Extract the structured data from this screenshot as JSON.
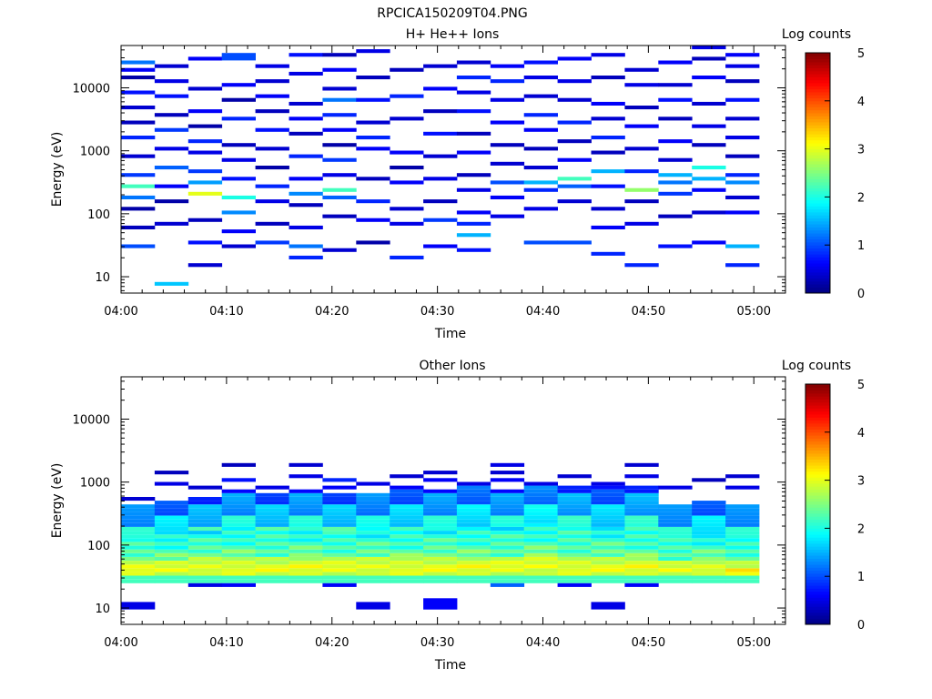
{
  "figure": {
    "title": "RPCICA150209T04.PNG"
  },
  "colorbar": {
    "label": "Log counts",
    "range": [
      0,
      5
    ],
    "ticks": [
      "0",
      "1",
      "2",
      "3",
      "4",
      "5"
    ]
  },
  "chart_data": [
    {
      "type": "heatmap",
      "title": "H+ He++ Ions",
      "xlabel": "Time",
      "ylabel": "Energy (eV)",
      "yscale": "log",
      "ylim": [
        5.5,
        47000
      ],
      "xlim_minutes": [
        0,
        63
      ],
      "x_tick_labels": [
        "04:00",
        "04:10",
        "04:20",
        "04:30",
        "04:40",
        "04:50",
        "05:00"
      ],
      "y_tick_labels": [
        "10",
        "100",
        "1000",
        "10000"
      ],
      "time_bins": 19,
      "energy_bins": 64,
      "cells": [
        [
          0,
          10,
          1,
          1
        ],
        [
          0,
          15,
          0.3
        ],
        [
          0,
          20,
          0.2
        ],
        [
          0,
          23,
          1.2
        ],
        [
          0,
          26,
          2.2
        ],
        [
          0,
          29,
          0.9
        ],
        [
          0,
          34,
          0.4
        ],
        [
          0,
          39,
          0.8
        ],
        [
          0,
          43,
          0.3
        ],
        [
          0,
          47,
          0.4
        ],
        [
          0,
          51,
          0.7
        ],
        [
          0,
          55,
          0.2
        ],
        [
          0,
          57,
          0.6
        ],
        [
          0,
          59,
          1,
          1.2
        ],
        [
          1,
          0,
          1,
          1.6
        ],
        [
          1,
          16,
          0.4
        ],
        [
          1,
          22,
          0.2
        ],
        [
          1,
          26,
          0.6
        ],
        [
          1,
          31,
          1.1
        ],
        [
          1,
          36,
          0.5
        ],
        [
          1,
          41,
          0.9
        ],
        [
          1,
          45,
          0.3
        ],
        [
          1,
          50,
          0.7
        ],
        [
          1,
          54,
          0.5
        ],
        [
          1,
          58,
          0.4
        ],
        [
          2,
          5,
          0.4
        ],
        [
          2,
          11,
          0.7
        ],
        [
          2,
          17,
          0.3
        ],
        [
          2,
          24,
          3.0
        ],
        [
          2,
          27,
          1.4
        ],
        [
          2,
          30,
          0.9
        ],
        [
          2,
          35,
          0.5
        ],
        [
          2,
          38,
          0.8
        ],
        [
          2,
          42,
          0.2
        ],
        [
          2,
          46,
          0.6
        ],
        [
          2,
          52,
          0.4
        ],
        [
          2,
          60,
          0.6
        ],
        [
          3,
          10,
          0.4
        ],
        [
          3,
          14,
          0.6
        ],
        [
          3,
          19,
          1.3
        ],
        [
          3,
          23,
          2.0
        ],
        [
          3,
          28,
          0.7
        ],
        [
          3,
          33,
          0.5
        ],
        [
          3,
          37,
          0.3
        ],
        [
          3,
          44,
          0.8
        ],
        [
          3,
          49,
          0.2
        ],
        [
          3,
          53,
          0.6
        ],
        [
          3,
          60,
          2,
          1.0
        ],
        [
          4,
          11,
          0.9
        ],
        [
          4,
          16,
          0.3
        ],
        [
          4,
          22,
          0.5
        ],
        [
          4,
          26,
          0.8
        ],
        [
          4,
          31,
          0.2
        ],
        [
          4,
          36,
          0.4
        ],
        [
          4,
          41,
          0.7
        ],
        [
          4,
          46,
          0.3
        ],
        [
          4,
          50,
          0.6
        ],
        [
          4,
          54,
          0.4
        ],
        [
          4,
          58,
          0.5
        ],
        [
          5,
          7,
          1,
          0.8
        ],
        [
          5,
          10,
          1.2
        ],
        [
          5,
          15,
          0.5
        ],
        [
          5,
          21,
          0.3
        ],
        [
          5,
          24,
          1.3
        ],
        [
          5,
          28,
          0.6
        ],
        [
          5,
          34,
          0.8
        ],
        [
          5,
          40,
          0.3
        ],
        [
          5,
          44,
          0.6
        ],
        [
          5,
          48,
          0.4
        ],
        [
          5,
          56,
          0.5
        ],
        [
          5,
          61,
          0.7
        ],
        [
          6,
          9,
          0.4
        ],
        [
          6,
          18,
          0.3
        ],
        [
          6,
          23,
          1.1
        ],
        [
          6,
          25,
          2.2
        ],
        [
          6,
          29,
          0.5
        ],
        [
          6,
          33,
          1,
          0.9
        ],
        [
          6,
          37,
          0.2
        ],
        [
          6,
          41,
          0.6
        ],
        [
          6,
          45,
          0.8
        ],
        [
          6,
          49,
          1.2
        ],
        [
          6,
          52,
          0.4
        ],
        [
          6,
          57,
          0.6
        ],
        [
          6,
          61,
          0.3
        ],
        [
          7,
          11,
          0.2
        ],
        [
          7,
          17,
          0.6
        ],
        [
          7,
          22,
          0.8
        ],
        [
          7,
          28,
          0.3
        ],
        [
          7,
          36,
          0.6
        ],
        [
          7,
          39,
          1,
          0.8
        ],
        [
          7,
          43,
          0.4
        ],
        [
          7,
          49,
          0.7
        ],
        [
          7,
          55,
          0.3
        ],
        [
          7,
          62,
          0.5
        ],
        [
          8,
          7,
          1,
          0.8
        ],
        [
          8,
          16,
          0.5
        ],
        [
          8,
          20,
          0.4
        ],
        [
          8,
          27,
          0.6
        ],
        [
          8,
          31,
          0.2
        ],
        [
          8,
          35,
          0.6
        ],
        [
          8,
          44,
          0.4
        ],
        [
          8,
          50,
          0.8
        ],
        [
          8,
          57,
          0.3
        ],
        [
          9,
          10,
          0.6
        ],
        [
          9,
          17,
          0.9
        ],
        [
          9,
          22,
          0.3
        ],
        [
          9,
          28,
          0.5
        ],
        [
          9,
          34,
          0.4
        ],
        [
          9,
          40,
          0.7
        ],
        [
          9,
          46,
          0.3
        ],
        [
          9,
          52,
          0.6
        ],
        [
          9,
          58,
          0.4
        ],
        [
          10,
          9,
          0.7
        ],
        [
          10,
          13,
          1.5
        ],
        [
          10,
          16,
          0.8
        ],
        [
          10,
          19,
          0.6
        ],
        [
          10,
          25,
          0.5
        ],
        [
          10,
          29,
          0.3
        ],
        [
          10,
          35,
          0.6
        ],
        [
          10,
          40,
          0.3
        ],
        [
          10,
          46,
          0.7
        ],
        [
          10,
          51,
          0.5
        ],
        [
          10,
          55,
          0.8
        ],
        [
          10,
          59,
          0.4
        ],
        [
          11,
          18,
          0.5
        ],
        [
          11,
          23,
          0.6
        ],
        [
          11,
          27,
          1.0
        ],
        [
          11,
          32,
          0.4
        ],
        [
          11,
          37,
          0.3
        ],
        [
          11,
          43,
          0.6
        ],
        [
          11,
          49,
          0.5
        ],
        [
          11,
          54,
          0.8
        ],
        [
          11,
          58,
          0.6
        ],
        [
          12,
          11,
          1,
          1.0
        ],
        [
          12,
          20,
          0.5
        ],
        [
          12,
          25,
          0.8
        ],
        [
          12,
          27,
          1.5
        ],
        [
          12,
          31,
          0.4
        ],
        [
          12,
          36,
          0.3
        ],
        [
          12,
          41,
          0.6
        ],
        [
          12,
          45,
          0.8
        ],
        [
          12,
          50,
          0.4
        ],
        [
          12,
          55,
          0.5
        ],
        [
          12,
          59,
          0.7
        ],
        [
          13,
          11,
          1,
          1.0
        ],
        [
          13,
          22,
          0.4
        ],
        [
          13,
          26,
          1.1
        ],
        [
          13,
          28,
          2.2
        ],
        [
          13,
          33,
          0.6
        ],
        [
          13,
          38,
          0.3
        ],
        [
          13,
          43,
          0.8
        ],
        [
          13,
          49,
          0.4
        ],
        [
          13,
          54,
          0.5
        ],
        [
          13,
          60,
          0.6
        ],
        [
          14,
          8,
          0.8
        ],
        [
          14,
          15,
          0.6
        ],
        [
          14,
          20,
          0.4
        ],
        [
          14,
          26,
          0.7
        ],
        [
          14,
          30,
          1.5
        ],
        [
          14,
          35,
          0.3
        ],
        [
          14,
          39,
          1,
          0.8
        ],
        [
          14,
          44,
          0.4
        ],
        [
          14,
          48,
          0.6
        ],
        [
          14,
          55,
          0.3
        ],
        [
          14,
          61,
          0.5
        ],
        [
          15,
          5,
          1,
          0.8
        ],
        [
          15,
          16,
          0.5
        ],
        [
          15,
          22,
          0.3
        ],
        [
          15,
          25,
          2.6
        ],
        [
          15,
          30,
          0.8
        ],
        [
          15,
          36,
          0.4
        ],
        [
          15,
          42,
          0.6
        ],
        [
          15,
          47,
          0.3
        ],
        [
          15,
          53,
          0.5
        ],
        [
          15,
          57,
          0.4
        ],
        [
          16,
          10,
          0.7
        ],
        [
          16,
          18,
          0.3
        ],
        [
          16,
          24,
          0.9
        ],
        [
          16,
          27,
          1.2
        ],
        [
          16,
          29,
          1.5
        ],
        [
          16,
          33,
          0.4
        ],
        [
          16,
          38,
          0.6
        ],
        [
          16,
          44,
          0.3
        ],
        [
          16,
          49,
          0.7
        ],
        [
          16,
          53,
          0.4
        ],
        [
          16,
          59,
          0.6
        ],
        [
          17,
          11,
          0.6
        ],
        [
          17,
          19,
          0.4
        ],
        [
          17,
          25,
          0.6
        ],
        [
          17,
          28,
          1.5
        ],
        [
          17,
          31,
          2.0
        ],
        [
          17,
          37,
          0.3
        ],
        [
          17,
          42,
          0.5
        ],
        [
          17,
          48,
          0.4
        ],
        [
          17,
          55,
          0.6
        ],
        [
          17,
          60,
          0.3
        ],
        [
          17,
          63,
          0.5
        ],
        [
          18,
          5,
          1,
          0.8
        ],
        [
          18,
          10,
          1.5
        ],
        [
          18,
          19,
          0.6
        ],
        [
          18,
          23,
          0.4
        ],
        [
          18,
          27,
          1.3
        ],
        [
          18,
          29,
          0.8
        ],
        [
          18,
          34,
          0.3
        ],
        [
          18,
          39,
          0.5
        ],
        [
          18,
          44,
          0.4
        ],
        [
          18,
          49,
          0.7
        ],
        [
          18,
          54,
          0.3
        ],
        [
          18,
          58,
          0.5
        ],
        [
          18,
          61,
          0.6
        ]
      ]
    },
    {
      "type": "heatmap",
      "title": "Other Ions",
      "xlabel": "Time",
      "ylabel": "Energy (eV)",
      "yscale": "log",
      "ylim": [
        5.5,
        47000
      ],
      "xlim_minutes": [
        0,
        63
      ],
      "x_tick_labels": [
        "04:00",
        "04:10",
        "04:20",
        "04:30",
        "04:40",
        "04:50",
        "05:00"
      ],
      "y_tick_labels": [
        "10",
        "100",
        "1000",
        "10000"
      ],
      "time_bins": 19,
      "energy_bins": 64,
      "band_bottom_bin": 9,
      "band_top_bins": [
        29,
        30,
        31,
        33,
        32,
        33,
        32,
        32,
        33,
        33,
        34,
        33,
        35,
        34,
        33,
        34,
        29,
        30,
        29
      ],
      "sparse_cells": [
        [
          0,
          2,
          2,
          0.5
        ],
        [
          0,
          31,
          0.4
        ],
        [
          1,
          35,
          0.5
        ],
        [
          1,
          38,
          0.3
        ],
        [
          2,
          8,
          1,
          0.5
        ],
        [
          2,
          34,
          0.4
        ],
        [
          3,
          8,
          1,
          0.6
        ],
        [
          3,
          36,
          0.7
        ],
        [
          3,
          40,
          0.3
        ],
        [
          4,
          34,
          0.5
        ],
        [
          5,
          40,
          0.4
        ],
        [
          5,
          37,
          0.5
        ],
        [
          6,
          8,
          1,
          0.6
        ],
        [
          6,
          36,
          0.8
        ],
        [
          6,
          34,
          0.6
        ],
        [
          7,
          2,
          2,
          0.5
        ],
        [
          7,
          35,
          0.5
        ],
        [
          8,
          37,
          0.4
        ],
        [
          8,
          34,
          0.6
        ],
        [
          9,
          2,
          3,
          0.6
        ],
        [
          9,
          38,
          0.4
        ],
        [
          9,
          36,
          0.6
        ],
        [
          10,
          35,
          0.5
        ],
        [
          11,
          8,
          1,
          1.1
        ],
        [
          11,
          40,
          0.5
        ],
        [
          11,
          38,
          0.4
        ],
        [
          11,
          36,
          0.6
        ],
        [
          12,
          35,
          0.5
        ],
        [
          13,
          8,
          1,
          0.6
        ],
        [
          13,
          37,
          0.4
        ],
        [
          14,
          2,
          2,
          0.5
        ],
        [
          14,
          35,
          0.5
        ],
        [
          14,
          34,
          0.7
        ],
        [
          15,
          8,
          1,
          0.6
        ],
        [
          15,
          40,
          0.4
        ],
        [
          15,
          37,
          0.5
        ],
        [
          16,
          34,
          0.5
        ],
        [
          17,
          36,
          0.3
        ],
        [
          18,
          37,
          0.4
        ],
        [
          18,
          34,
          0.5
        ]
      ]
    }
  ]
}
